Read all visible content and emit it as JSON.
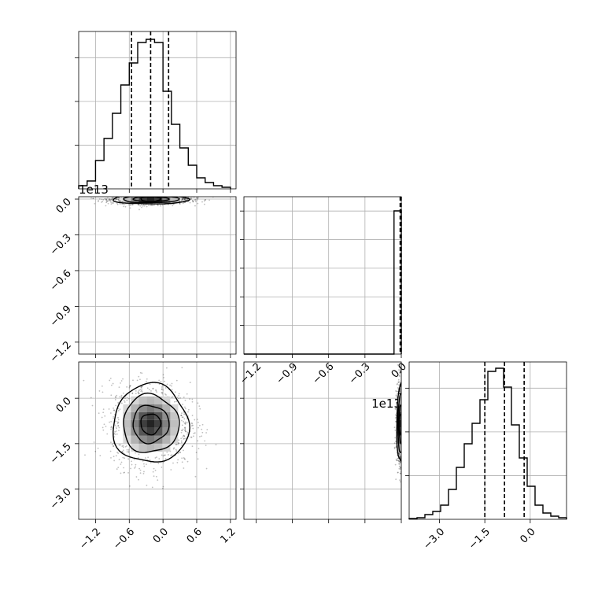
{
  "chart_data": [
    {
      "type": "histogram",
      "panel": "marginal-param-1",
      "xlim": [
        -1.5,
        1.3
      ],
      "x_ticks": [
        "-1.2",
        "-0.6",
        "0.0",
        "0.6",
        "1.2"
      ],
      "x_tick_values": [
        -1.2,
        -0.6,
        0.0,
        0.6,
        1.2
      ],
      "bin_edges": [
        -1.5,
        -1.35,
        -1.2,
        -1.05,
        -0.9,
        -0.75,
        -0.6,
        -0.45,
        -0.3,
        -0.15,
        0.0,
        0.15,
        0.3,
        0.45,
        0.6,
        0.75,
        0.9,
        1.05,
        1.2
      ],
      "counts": [
        0.2,
        0.5,
        1.8,
        3.2,
        4.8,
        6.6,
        8.0,
        9.3,
        9.5,
        9.3,
        6.2,
        4.1,
        2.6,
        1.5,
        0.7,
        0.4,
        0.2,
        0.1
      ],
      "ylim": [
        0,
        10.0
      ],
      "quantiles": [
        -0.56,
        -0.22,
        0.1
      ]
    },
    {
      "type": "histogram",
      "panel": "marginal-param-2",
      "xlim": [
        -1.3,
        0.0
      ],
      "ylim": [
        0,
        1.0
      ],
      "x_ticks": [
        "-1.2",
        "-0.9",
        "-0.6",
        "-0.3",
        "0.0"
      ],
      "x_tick_values": [
        -1.2,
        -0.9,
        -0.6,
        -0.3,
        0.0
      ],
      "x_offset_label": "1e13",
      "bar": {
        "x0": -0.06,
        "x1": 0.0,
        "height": 1.0
      },
      "quantiles": [
        -0.01,
        -0.004,
        0.0
      ]
    },
    {
      "type": "histogram",
      "panel": "marginal-param-3",
      "xlim": [
        -4.0,
        1.2
      ],
      "x_ticks": [
        "-3.0",
        "-1.5",
        "0.0"
      ],
      "x_tick_values": [
        -3.0,
        -1.5,
        0.0
      ],
      "bin_edges": [
        -4.0,
        -3.74,
        -3.48,
        -3.22,
        -2.96,
        -2.7,
        -2.44,
        -2.18,
        -1.92,
        -1.66,
        -1.4,
        -1.14,
        -0.88,
        -0.62,
        -0.36,
        -0.1,
        0.16,
        0.42,
        0.68,
        0.94,
        1.2
      ],
      "counts": [
        0.05,
        0.1,
        0.3,
        0.5,
        0.9,
        1.9,
        3.3,
        4.8,
        6.1,
        7.6,
        9.4,
        9.6,
        8.4,
        6.0,
        3.9,
        2.1,
        0.9,
        0.4,
        0.2,
        0.1
      ],
      "ylim": [
        0,
        10.0
      ],
      "quantiles": [
        -1.5,
        -0.85,
        -0.2
      ]
    },
    {
      "type": "contour",
      "panel": "param-2-vs-param-1",
      "xlim": [
        -1.5,
        1.3
      ],
      "ylim": [
        -1.3,
        0.02
      ],
      "y_ticks": [
        "0.0",
        "-0.3",
        "-0.6",
        "-0.9",
        "-1.2"
      ],
      "y_tick_values": [
        0.0,
        -0.3,
        -0.6,
        -0.9,
        -1.2
      ],
      "y_offset_label": "1e13",
      "center": [
        -0.22,
        -0.0
      ],
      "spread": [
        0.32,
        0.02
      ]
    },
    {
      "type": "contour",
      "panel": "param-3-vs-param-1",
      "xlim": [
        -1.5,
        1.3
      ],
      "ylim": [
        -4.0,
        1.2
      ],
      "x_ticks": [
        "-1.2",
        "-0.6",
        "0.0",
        "0.6",
        "1.2"
      ],
      "x_tick_values": [
        -1.2,
        -0.6,
        0.0,
        0.6,
        1.2
      ],
      "y_ticks": [
        "0.0",
        "-1.5",
        "-3.0"
      ],
      "y_tick_values": [
        0.0,
        -1.5,
        -3.0
      ],
      "center": [
        -0.22,
        -0.85
      ],
      "spread": [
        0.32,
        0.62
      ]
    },
    {
      "type": "contour",
      "panel": "param-3-vs-param-2",
      "xlim": [
        -1.3,
        0.0
      ],
      "ylim": [
        -4.0,
        1.2
      ],
      "x_ticks": [
        "-1.2",
        "-0.9",
        "-0.6",
        "-0.3",
        "0.0"
      ],
      "x_tick_values": [
        -1.2,
        -0.9,
        -0.6,
        -0.3,
        0.0
      ],
      "x_offset_label": "1e13",
      "center": [
        0.0,
        -0.85
      ],
      "spread": [
        0.018,
        0.62
      ]
    }
  ]
}
